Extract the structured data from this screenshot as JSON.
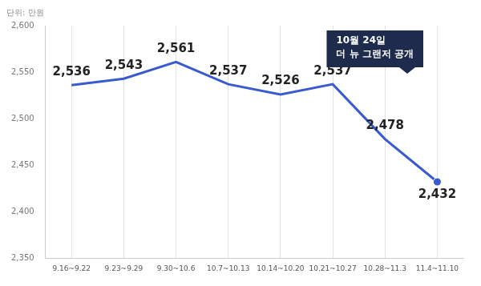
{
  "chart_data": {
    "type": "line",
    "ylabel": "단위: 만원",
    "annotation": [
      "10월 24일",
      "더 뉴 그랜저 공개"
    ],
    "categories": [
      "9.16~9.22",
      "9.23~9.29",
      "9.30~10.6",
      "10.7~10.13",
      "10.14~10.20",
      "10.21~10.27",
      "10.28~11.3",
      "11.4~11.10"
    ],
    "values": [
      2536,
      2543,
      2561,
      2537,
      2526,
      2537,
      2478,
      2432
    ],
    "value_labels": [
      "2,536",
      "2,543",
      "2,561",
      "2,537",
      "2,526",
      "2,537",
      "2,478",
      "2,432"
    ],
    "color": "#3a5bd0",
    "ylim": [
      2350,
      2600
    ],
    "yticks": [
      {
        "value": 2350,
        "label": "2,350"
      },
      {
        "value": 2400,
        "label": "2,400"
      },
      {
        "value": 2450,
        "label": "2,450"
      },
      {
        "value": 2500,
        "label": "2,500"
      },
      {
        "value": 2550,
        "label": "2,550"
      },
      {
        "value": 2600,
        "label": "2,600"
      }
    ],
    "grid": true,
    "data_labels": true
  }
}
